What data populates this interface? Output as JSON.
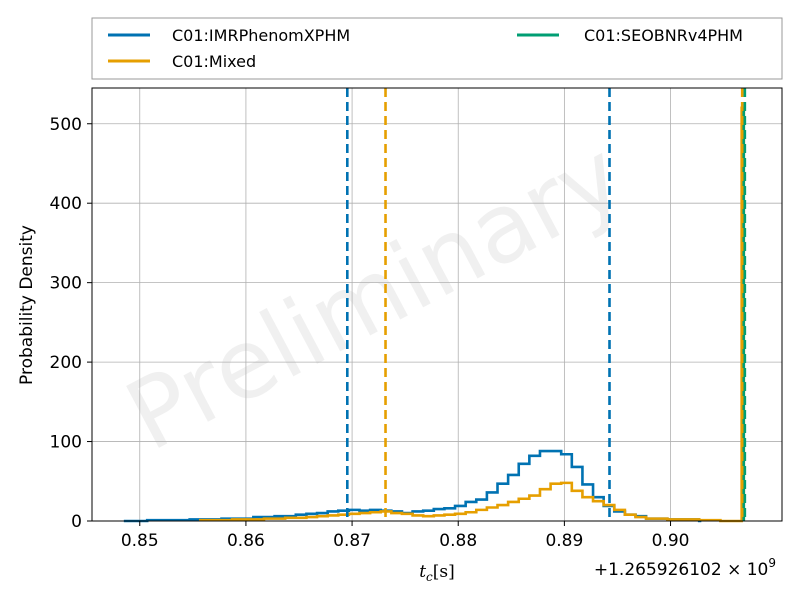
{
  "chart_data": {
    "type": "histogram",
    "title": "",
    "xlabel": "t_c[s]",
    "ylabel": "Probability Density",
    "offset_label": "+1.265926102 × 10",
    "offset_exponent": "9",
    "watermark": "Preliminary",
    "xlim": [
      0.8455,
      0.9105
    ],
    "ylim": [
      0,
      545
    ],
    "xticks": [
      0.85,
      0.86,
      0.87,
      0.88,
      0.89,
      0.9
    ],
    "xtick_labels": [
      "0.85",
      "0.86",
      "0.87",
      "0.88",
      "0.89",
      "0.90"
    ],
    "yticks": [
      0,
      100,
      200,
      300,
      400,
      500
    ],
    "ytick_labels": [
      "0",
      "100",
      "200",
      "300",
      "400",
      "500"
    ],
    "grid": true,
    "legend_position": "top, above plot",
    "series": [
      {
        "name": "C01:IMRPhenomXPHM",
        "color": "#0072b2",
        "bins_x": [
          0.8485,
          0.8507,
          0.8547,
          0.8577,
          0.8607,
          0.8627,
          0.8647,
          0.8657,
          0.8667,
          0.8677,
          0.8687,
          0.8697,
          0.8707,
          0.8717,
          0.8727,
          0.8737,
          0.8747,
          0.8757,
          0.8767,
          0.8777,
          0.8787,
          0.8797,
          0.8807,
          0.8817,
          0.8827,
          0.8837,
          0.8847,
          0.8857,
          0.8867,
          0.8877,
          0.8887,
          0.8897,
          0.8907,
          0.8917,
          0.8927,
          0.8937,
          0.8947,
          0.8957,
          0.8967,
          0.8977,
          0.8997,
          0.9027
        ],
        "density": [
          0,
          1,
          2,
          3,
          5,
          6,
          8,
          9,
          10,
          12,
          13,
          14,
          13,
          14,
          13,
          12,
          10,
          12,
          13,
          15,
          16,
          19,
          24,
          27,
          36,
          47,
          58,
          72,
          82,
          88,
          88,
          84,
          68,
          46,
          30,
          19,
          12,
          8,
          6,
          3,
          2,
          0
        ],
        "interval": [
          0.86955,
          0.89425
        ]
      },
      {
        "name": "C01:Mixed",
        "color": "#e69f00",
        "bins_x": [
          0.8557,
          0.8587,
          0.8617,
          0.8637,
          0.8657,
          0.8667,
          0.8677,
          0.8687,
          0.8697,
          0.8707,
          0.8717,
          0.8727,
          0.8737,
          0.8747,
          0.8757,
          0.8767,
          0.8777,
          0.8787,
          0.8797,
          0.8807,
          0.8817,
          0.8827,
          0.8837,
          0.8847,
          0.8857,
          0.8867,
          0.8877,
          0.8887,
          0.8897,
          0.8907,
          0.8917,
          0.8927,
          0.8937,
          0.8947,
          0.8957,
          0.8967,
          0.8977,
          0.8997,
          0.9027,
          0.9047,
          0.9067
        ],
        "density": [
          1,
          2,
          3,
          4,
          5,
          6,
          7,
          8,
          9,
          10,
          11,
          12,
          10,
          9,
          7,
          6,
          7,
          8,
          9,
          11,
          14,
          17,
          20,
          24,
          28,
          32,
          40,
          47,
          48,
          38,
          30,
          25,
          20,
          14,
          8,
          5,
          3,
          2,
          1,
          0,
          520
        ],
        "interval": [
          0.87315,
          0.90675
        ]
      },
      {
        "name": "C01:SEOBNRv4PHM",
        "color": "#009e73",
        "spike_x": 0.9069,
        "spike_density": 520,
        "interval": [
          0.907,
          0.907
        ]
      }
    ]
  }
}
